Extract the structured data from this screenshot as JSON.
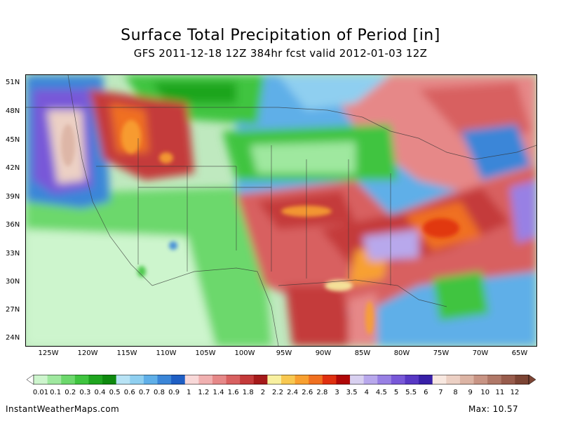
{
  "title": "Surface Total Precipitation of Period [in]",
  "subtitle": "GFS 2011-12-18 12Z 384hr fcst valid 2012-01-03 12Z",
  "lat_labels": [
    "51N",
    "48N",
    "45N",
    "42N",
    "39N",
    "36N",
    "33N",
    "30N",
    "27N",
    "24N"
  ],
  "lon_labels": [
    "125W",
    "120W",
    "115W",
    "110W",
    "105W",
    "100W",
    "95W",
    "90W",
    "85W",
    "80W",
    "75W",
    "70W",
    "65W"
  ],
  "colorbar": {
    "labels": [
      "0.01",
      "0.1",
      "0.2",
      "0.3",
      "0.4",
      "0.5",
      "0.6",
      "0.7",
      "0.8",
      "0.9",
      "1",
      "1.2",
      "1.4",
      "1.6",
      "1.8",
      "2",
      "2.2",
      "2.4",
      "2.6",
      "2.8",
      "3",
      "3.5",
      "4",
      "4.5",
      "5",
      "5.5",
      "6",
      "7",
      "8",
      "9",
      "10",
      "11",
      "12"
    ],
    "colors": [
      "#cdf5cd",
      "#9fe89f",
      "#6cd86c",
      "#3fc43f",
      "#1fa51f",
      "#0f8a0f",
      "#b8e3f5",
      "#8fcff0",
      "#5fafe8",
      "#3b86d8",
      "#1f5fc4",
      "#f8d8d8",
      "#f0b0b0",
      "#e68888",
      "#d86060",
      "#c43a3a",
      "#a51a1a",
      "#f8f0a0",
      "#f8c850",
      "#f8a030",
      "#f07020",
      "#e03010",
      "#b00808",
      "#d8d0f0",
      "#b8a8ec",
      "#9880e4",
      "#7858d8",
      "#5838c4",
      "#3820a8",
      "#f8e8e0",
      "#ecd0c4",
      "#dcb4a4",
      "#c89484",
      "#b07868",
      "#985c4c",
      "#7c4434"
    ]
  },
  "footer": {
    "source": "InstantWeatherMaps.com",
    "max_label": "Max:  10.57"
  }
}
